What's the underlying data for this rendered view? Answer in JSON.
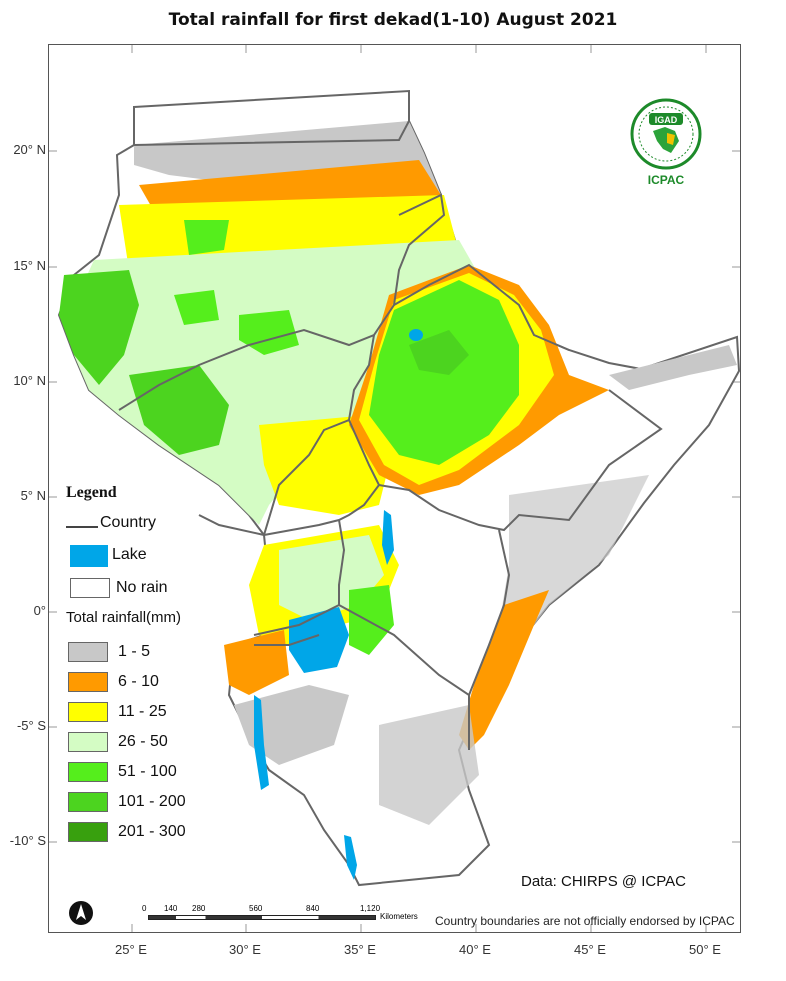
{
  "title": "Total rainfall for  first  dekad(1-10)  August 2021",
  "latitude_labels": [
    "20° N",
    "15° N",
    "10° N",
    "5° N",
    "0°",
    "-5° S",
    "-10° S"
  ],
  "longitude_labels": [
    "25° E",
    "30° E",
    "35° E",
    "40° E",
    "45° E",
    "50° E"
  ],
  "legend": {
    "title": "Legend",
    "country_label": "Country",
    "lake_label": "Lake",
    "no_rain_label": "No rain",
    "total_rainfall_label": "Total rainfall(mm)",
    "classes": [
      {
        "label": "1 - 5",
        "color": "#c8c8c8"
      },
      {
        "label": "6 - 10",
        "color": "#ff9a00"
      },
      {
        "label": "11 - 25",
        "color": "#ffff00"
      },
      {
        "label": "26 - 50",
        "color": "#d4fcc4"
      },
      {
        "label": "51 - 100",
        "color": "#55ee1c"
      },
      {
        "label": "101 - 200",
        "color": "#4cd41f"
      },
      {
        "label": "201 - 300",
        "color": "#38a00e"
      }
    ],
    "lake_color": "#00a6e8",
    "no_rain_color": "#ffffff"
  },
  "logo": {
    "text": "ICPAC",
    "badge_text": "IGAD"
  },
  "credit": "Data: CHIRPS @ ICPAC",
  "disclaimer": "Country boundaries are not officially endorsed by ICPAC",
  "scale": {
    "ticks": [
      "0",
      "140",
      "280",
      "560",
      "840",
      "1,120"
    ],
    "unit": "Kilometers"
  },
  "north_arrow": "north-arrow-icon"
}
